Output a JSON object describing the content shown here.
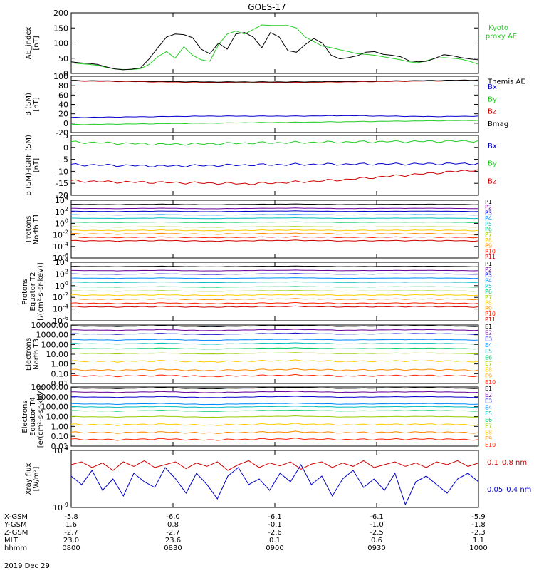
{
  "title": "GOES-17",
  "date_label": "2019 Dec 29",
  "colors": {
    "black": "#000000",
    "green": "#22cc22",
    "blue": "#0000cc",
    "red": "#cc0000",
    "p_colors": [
      "#000000",
      "#660099",
      "#0000cc",
      "#0088ff",
      "#00bbbb",
      "#00cc66",
      "#99cc00",
      "#ffcc00",
      "#ff8800",
      "#ff2200",
      "#cc0000"
    ],
    "e_colors": [
      "#000000",
      "#660099",
      "#0000cc",
      "#0088ff",
      "#00bbbb",
      "#00cc66",
      "#99cc00",
      "#ffcc00",
      "#ff8800",
      "#ff2200",
      "#cc0000"
    ]
  },
  "x_axis": {
    "range": [
      "0800",
      "1000"
    ],
    "rows": [
      {
        "label": "X-GSM",
        "values": [
          "-5.8",
          "-6.0",
          "-6.1",
          "-6.1",
          "-5.9"
        ]
      },
      {
        "label": "Y-GSM",
        "values": [
          "1.6",
          "0.8",
          "-0.1",
          "-1.0",
          "-1.8"
        ]
      },
      {
        "label": "Z-GSM",
        "values": [
          "-2.7",
          "-2.7",
          "-2.6",
          "-2.5",
          "-2.3"
        ]
      },
      {
        "label": "MLT",
        "values": [
          "23.0",
          "23.6",
          "0.1",
          "0.6",
          "1.1"
        ]
      },
      {
        "label": "hhmm",
        "values": [
          "0800",
          "0830",
          "0900",
          "0930",
          "1000"
        ]
      }
    ]
  },
  "chart_data": [
    {
      "type": "line",
      "ylabel": [
        "AE_index",
        "[nT]"
      ],
      "ylim": [
        0,
        200
      ],
      "ticks": [
        "0",
        "50",
        "100",
        "150",
        "200"
      ],
      "series": [
        {
          "name": "Kyoto",
          "name2": "proxy AE",
          "color": "#22cc22",
          "values": [
            35,
            32,
            30,
            27,
            20,
            15,
            13,
            13,
            16,
            30,
            55,
            72,
            50,
            88,
            60,
            45,
            40,
            95,
            130,
            140,
            130,
            145,
            160,
            158,
            158,
            158,
            150,
            120,
            105,
            90,
            85,
            78,
            72,
            65,
            63,
            60,
            55,
            50,
            45,
            38,
            35,
            42,
            50,
            52,
            50,
            47,
            40,
            30
          ]
        },
        {
          "name": "Themis AE",
          "color": "#000000",
          "values": [
            38,
            35,
            33,
            30,
            22,
            15,
            12,
            14,
            18,
            48,
            85,
            120,
            130,
            128,
            118,
            80,
            65,
            100,
            80,
            130,
            135,
            120,
            85,
            135,
            120,
            75,
            70,
            95,
            115,
            100,
            60,
            48,
            52,
            58,
            70,
            72,
            63,
            60,
            55,
            42,
            38,
            40,
            50,
            62,
            58,
            52,
            48,
            45
          ]
        }
      ]
    },
    {
      "type": "line",
      "ylabel": [
        "B (SM)",
        "[nT]"
      ],
      "ylim": [
        -20,
        100
      ],
      "ticks": [
        "-20",
        "0",
        "20",
        "40",
        "60",
        "80",
        "100"
      ],
      "series": [
        {
          "name": "Bx",
          "color": "#0000cc",
          "values": [
            12,
            13,
            14,
            15,
            15,
            15,
            16,
            15,
            14,
            15
          ]
        },
        {
          "name": "By",
          "color": "#22cc22",
          "values": [
            -3,
            -2,
            -1,
            0,
            1,
            2,
            3,
            4,
            5,
            6
          ]
        },
        {
          "name": "Bz",
          "color": "#cc0000",
          "values": [
            90,
            89,
            88,
            87,
            86,
            87,
            88,
            89,
            90,
            91
          ]
        },
        {
          "name": "Bmag",
          "color": "#000000",
          "values": [
            91,
            90,
            89,
            88,
            88,
            88,
            89,
            90,
            91,
            92
          ]
        }
      ]
    },
    {
      "type": "line",
      "ylabel": [
        "B (SM)-IGRF (SM)",
        "[nT]"
      ],
      "ylim": [
        -22,
        5
      ],
      "ticks": [
        "-20",
        "-15",
        "-10",
        "-5",
        "0",
        "5"
      ],
      "series": [
        {
          "name": "Bx",
          "color": "#0000cc",
          "values": [
            -8.2,
            -8.5,
            -8.8,
            -8.6,
            -8.3,
            -8.1,
            -8.0,
            -7.9,
            -7.8,
            -7.7
          ]
        },
        {
          "name": "By",
          "color": "#22cc22",
          "values": [
            2.0,
            1.5,
            1.0,
            1.2,
            1.6,
            1.8,
            2.0,
            2.2,
            2.3,
            2.5
          ]
        },
        {
          "name": "Bz",
          "color": "#cc0000",
          "values": [
            -15.5,
            -16.0,
            -16.2,
            -16.5,
            -16.8,
            -16.0,
            -15.0,
            -13.5,
            -12.0,
            -10.5
          ]
        }
      ]
    },
    {
      "type": "line",
      "ylabel": [
        "Protons",
        "North T1"
      ],
      "log": true,
      "ylim_exp": [
        -6,
        4
      ],
      "ticks": [
        "10^-6",
        "10^-4",
        "10^-2",
        "10^0",
        "10^2",
        "10^4"
      ],
      "channels": [
        "P1",
        "P2",
        "P3",
        "P4",
        "P5",
        "P6",
        "P7",
        "P8",
        "P9",
        "P10",
        "P11"
      ],
      "series_exp": [
        3.3,
        2.6,
        2.1,
        1.5,
        0.9,
        0.2,
        -0.6,
        -1.2,
        -1.8,
        -2.4,
        -3.0
      ]
    },
    {
      "type": "line",
      "ylabel": [
        "Protons",
        "Equator T2",
        "[/(cm²-s-sr-keV)]"
      ],
      "log": true,
      "ylim_exp": [
        -6,
        4
      ],
      "ticks": [
        "10^-6",
        "10^-4",
        "10^-2",
        "10^0",
        "10^2",
        "10^4"
      ],
      "channels": [
        "P1",
        "P2",
        "P3",
        "P4",
        "P5",
        "P6",
        "P7",
        "P8",
        "P9",
        "P10",
        "P11"
      ],
      "series_exp": [
        3.3,
        2.6,
        2.0,
        1.3,
        0.6,
        -0.2,
        -0.9,
        -1.6,
        -2.3,
        -3.0,
        -3.6
      ]
    },
    {
      "type": "line",
      "ylabel": [
        "Electrons",
        "North T3"
      ],
      "log": true,
      "ylim_exp": [
        -2,
        4
      ],
      "ticks": [
        "0.01",
        "0.10",
        "1.00",
        "10.00",
        "100.00",
        "1000.00",
        "10000.00"
      ],
      "channels": [
        "E1",
        "E2",
        "E3",
        "E4",
        "E5",
        "E6",
        "E7",
        "E8",
        "E9",
        "E10"
      ],
      "series_exp": [
        3.9,
        3.5,
        3.1,
        2.5,
        2.1,
        1.6,
        1.1,
        0.3,
        -0.6,
        -1.2
      ]
    },
    {
      "type": "line",
      "ylabel": [
        "Electrons",
        "Equator T4",
        "[e/(cm²-s-sr-keV)]"
      ],
      "log": true,
      "ylim_exp": [
        -2,
        4
      ],
      "ticks": [
        "0.01",
        "0.10",
        "1.00",
        "10.00",
        "100.00",
        "1000.00",
        "10000.00"
      ],
      "channels": [
        "E1",
        "E2",
        "E3",
        "E4",
        "E5",
        "E6",
        "E7",
        "E8",
        "E9",
        "E10"
      ],
      "series_exp": [
        3.9,
        3.5,
        3.0,
        2.3,
        2.0,
        1.6,
        1.0,
        0.2,
        -0.6,
        -1.3
      ]
    },
    {
      "type": "line",
      "ylabel": [
        "Xray flux",
        "[W/m²]"
      ],
      "log": true,
      "ylim_exp": [
        -9,
        -8
      ],
      "ticks": [
        "10^-9",
        "10^-8"
      ],
      "series": [
        {
          "name": "0.1–0.8 nm",
          "color": "#cc0000",
          "values_exp": [
            -8.25,
            -8.2,
            -8.3,
            -8.22,
            -8.35,
            -8.2,
            -8.28,
            -8.18,
            -8.3,
            -8.25,
            -8.2,
            -8.32,
            -8.22,
            -8.28,
            -8.2,
            -8.35,
            -8.25,
            -8.18,
            -8.3,
            -8.22,
            -8.27,
            -8.2,
            -8.33,
            -8.24,
            -8.2,
            -8.3,
            -8.22,
            -8.28,
            -8.18,
            -8.3,
            -8.25,
            -8.2,
            -8.28,
            -8.22,
            -8.3,
            -8.2,
            -8.25,
            -8.18,
            -8.28,
            -8.22
          ]
        },
        {
          "name": "0.05–0.4 nm",
          "color": "#0000cc",
          "values_exp": [
            -8.45,
            -8.6,
            -8.35,
            -8.7,
            -8.5,
            -8.8,
            -8.4,
            -8.55,
            -8.65,
            -8.3,
            -8.5,
            -8.75,
            -8.4,
            -8.6,
            -8.85,
            -8.45,
            -8.3,
            -8.6,
            -8.5,
            -8.7,
            -8.4,
            -8.55,
            -8.25,
            -8.6,
            -8.45,
            -8.8,
            -8.5,
            -8.35,
            -8.65,
            -8.5,
            -8.7,
            -8.4,
            -8.95,
            -8.55,
            -8.45,
            -8.6,
            -8.75,
            -8.5,
            -8.4,
            -8.55
          ]
        }
      ]
    }
  ]
}
